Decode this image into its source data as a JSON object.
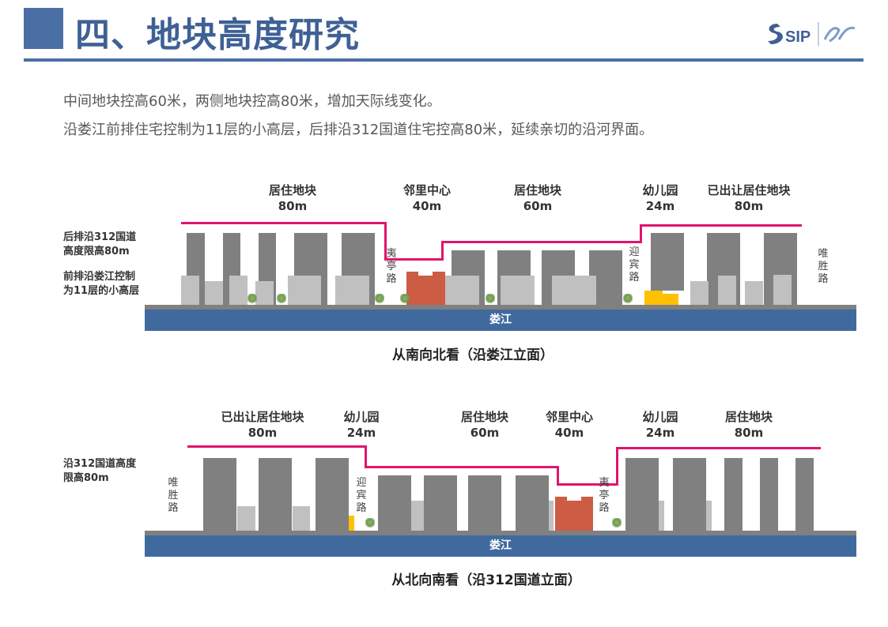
{
  "header": {
    "title": "四、地块高度研究",
    "logo_text": "SIP",
    "accent": "#4a6fa5"
  },
  "intro": [
    "中间地块控高60米，两侧地块控高80米，增加天际线变化。",
    "沿娄江前排住宅控制为11层的小高层，后排沿312国道住宅控高80米，延续亲切的沿河界面。"
  ],
  "top_diagram": {
    "blocks": [
      {
        "name": "居住地块",
        "height": "80m"
      },
      {
        "name": "邻里中心",
        "height": "40m"
      },
      {
        "name": "居住地块",
        "height": "60m"
      },
      {
        "name": "幼儿园",
        "height": "24m"
      },
      {
        "name": "已出让居住地块",
        "height": "80m"
      }
    ],
    "side_notes": [
      "后排沿312国道\n高度限高80m",
      "前排沿娄江控制\n为11层的小高层"
    ],
    "roads": [
      "夷亭路",
      "迎宾路",
      "唯胜路"
    ],
    "river": "娄江",
    "caption": "从南向北看（沿娄江立面）"
  },
  "bottom_diagram": {
    "blocks": [
      {
        "name": "已出让居住地块",
        "height": "80m"
      },
      {
        "name": "幼儿园",
        "height": "24m"
      },
      {
        "name": "居住地块",
        "height": "60m"
      },
      {
        "name": "邻里中心",
        "height": "40m"
      },
      {
        "name": "幼儿园",
        "height": "24m"
      },
      {
        "name": "居住地块",
        "height": "80m"
      }
    ],
    "side_notes": [
      "沿312国道高度\n限高80m"
    ],
    "roads": [
      "唯胜路",
      "迎宾路",
      "夷亭路"
    ],
    "river": "娄江",
    "caption": "从北向南看（沿312国道立面）"
  },
  "colors": {
    "skyline": "#e0146e",
    "high_rise": "#808080",
    "low_rise": "#c0c0c0",
    "neighborhood_center": "#cd5c45",
    "kindergarten": "#ffc000",
    "river": "#406a9e"
  }
}
